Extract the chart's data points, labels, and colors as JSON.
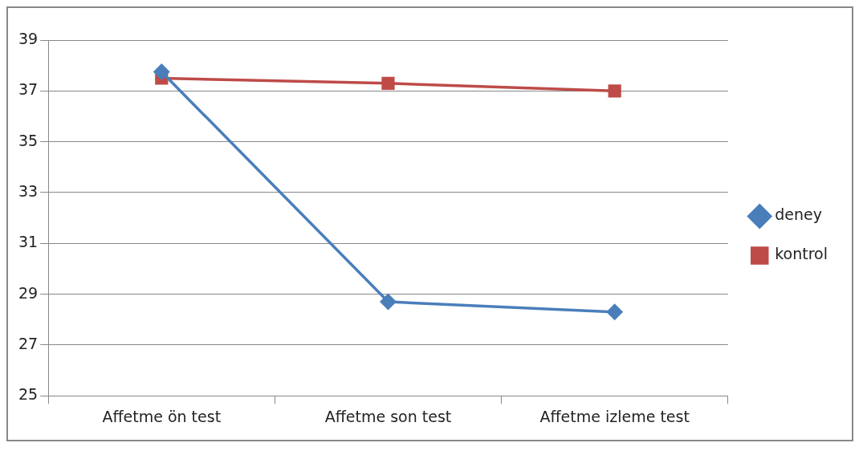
{
  "chart_data": {
    "type": "line",
    "categories": [
      "Affetme ön test",
      "Affetme son test",
      "Affetme izleme test"
    ],
    "series": [
      {
        "name": "deney",
        "color": "#4a7ebb",
        "values": [
          37.75,
          28.7,
          28.3
        ],
        "marker": "diamond"
      },
      {
        "name": "kontrol",
        "color": "#be4b48",
        "values": [
          37.5,
          37.3,
          37.0
        ],
        "marker": "square"
      }
    ],
    "ylim": [
      25,
      39
    ],
    "yticks": [
      25,
      27,
      29,
      31,
      33,
      35,
      37,
      39
    ],
    "grid": "y",
    "legend": "right",
    "line_style": "solid"
  }
}
